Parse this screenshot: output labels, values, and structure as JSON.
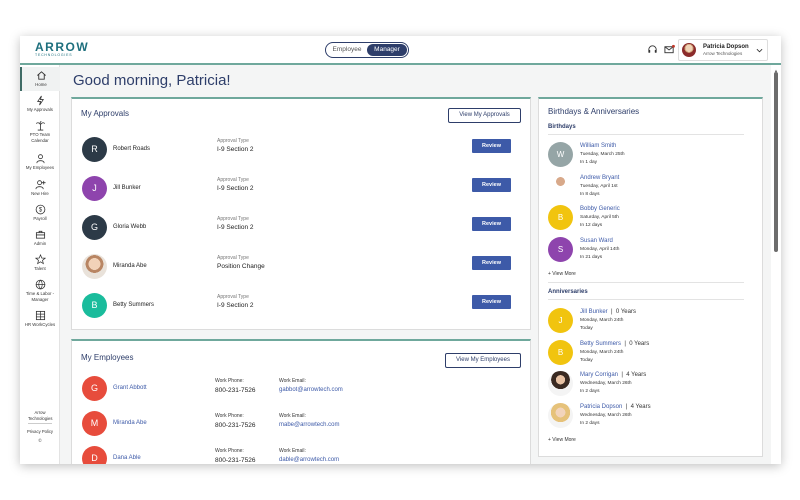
{
  "header": {
    "logo_text": "ARROW",
    "logo_sub": "TECHNOLOGIES",
    "toggle": [
      "Employee",
      "Manager"
    ],
    "toggle_active": 1,
    "user_name": "Patricia Dopson",
    "user_company": "Arrow Technologies",
    "icons": [
      "headset-icon",
      "mail-icon"
    ]
  },
  "sidebar": {
    "items": [
      {
        "label": "Home",
        "icon": "home-icon"
      },
      {
        "label": "My Approvals",
        "icon": "lightning-icon"
      },
      {
        "label": "PTO Team Calendar",
        "icon": "palm-tree-icon"
      },
      {
        "label": "My Employees",
        "icon": "person-icon"
      },
      {
        "label": "New Hire",
        "icon": "person-add-icon"
      },
      {
        "label": "Payroll",
        "icon": "dollar-icon"
      },
      {
        "label": "Admin",
        "icon": "briefcase-icon"
      },
      {
        "label": "Talent",
        "icon": "star-icon"
      },
      {
        "label": "Time & Labor - Manager",
        "icon": "globe-clock-icon"
      },
      {
        "label": "HR WorkCycles",
        "icon": "table-icon"
      }
    ],
    "footer_company": "Arrow Technologies",
    "privacy": "Privacy Policy",
    "copyright": "©"
  },
  "main": {
    "greeting": "Good morning, Patricia!"
  },
  "approvals": {
    "title": "My Approvals",
    "view_button": "View My Approvals",
    "type_label": "Approval Type",
    "review_label": "Review",
    "rows": [
      {
        "name": "Robert Roads",
        "initial": "R",
        "color": "#2c3a47",
        "type": "I-9 Section 2"
      },
      {
        "name": "Jill Bunker",
        "initial": "J",
        "color": "#8e44ad",
        "type": "I-9 Section 2"
      },
      {
        "name": "Gloria Webb",
        "initial": "G",
        "color": "#2c3a47",
        "type": "I-9 Section 2"
      },
      {
        "name": "Miranda Abe",
        "initial": "",
        "color": "photo",
        "type": "Position Change"
      },
      {
        "name": "Betty Summers",
        "initial": "B",
        "color": "#1abc9c",
        "type": "I-9 Section 2"
      }
    ]
  },
  "employees": {
    "title": "My Employees",
    "view_button": "View My Employees",
    "phone_label": "Work Phone:",
    "email_label": "Work Email:",
    "rows": [
      {
        "name": "Grant Abbott",
        "initial": "G",
        "color": "#e74c3c",
        "phone": "800-231-7526",
        "email": "gabbot@arrowtech.com"
      },
      {
        "name": "Miranda Abe",
        "initial": "M",
        "color": "#e74c3c",
        "phone": "800-231-7526",
        "email": "mabe@arrowtech.com"
      },
      {
        "name": "Dana Able",
        "initial": "D",
        "color": "#e74c3c",
        "phone": "800-231-7526",
        "email": "dable@arrowtech.com"
      }
    ]
  },
  "celebrations": {
    "title": "Birthdays & Anniversaries",
    "birthdays_title": "Birthdays",
    "anniversaries_title": "Anniversaries",
    "view_more": "+ View More",
    "birthdays": [
      {
        "name": "William Smith",
        "initial": "W",
        "color": "#95a5a6",
        "date": "Tuesday, March 25th",
        "in": "In 1 day"
      },
      {
        "name": "Andrew Bryant",
        "initial": "",
        "color": "photo-man",
        "date": "Tuesday, April 1st",
        "in": "In 8 days"
      },
      {
        "name": "Bobby Generic",
        "initial": "B",
        "color": "#f1c40f",
        "date": "Saturday, April 5th",
        "in": "In 12 days"
      },
      {
        "name": "Susan Ward",
        "initial": "S",
        "color": "#8e44ad",
        "date": "Monday, April 14th",
        "in": "In 21 days"
      }
    ],
    "anniversaries": [
      {
        "name": "Jill Bunker",
        "years": "0 Years",
        "initial": "J",
        "color": "#f1c40f",
        "date": "Monday, March 24th",
        "in": "Today"
      },
      {
        "name": "Betty Summers",
        "years": "0 Years",
        "initial": "B",
        "color": "#f1c40f",
        "date": "Monday, March 24th",
        "in": "Today"
      },
      {
        "name": "Mary Corrigan",
        "years": "4 Years",
        "initial": "",
        "color": "photo-woman",
        "date": "Wednesday, March 26th",
        "in": "In 2 days"
      },
      {
        "name": "Patricia Dopson",
        "years": "4 Years",
        "initial": "",
        "color": "photo-blonde",
        "date": "Wednesday, March 26th",
        "in": "In 2 days"
      }
    ]
  }
}
